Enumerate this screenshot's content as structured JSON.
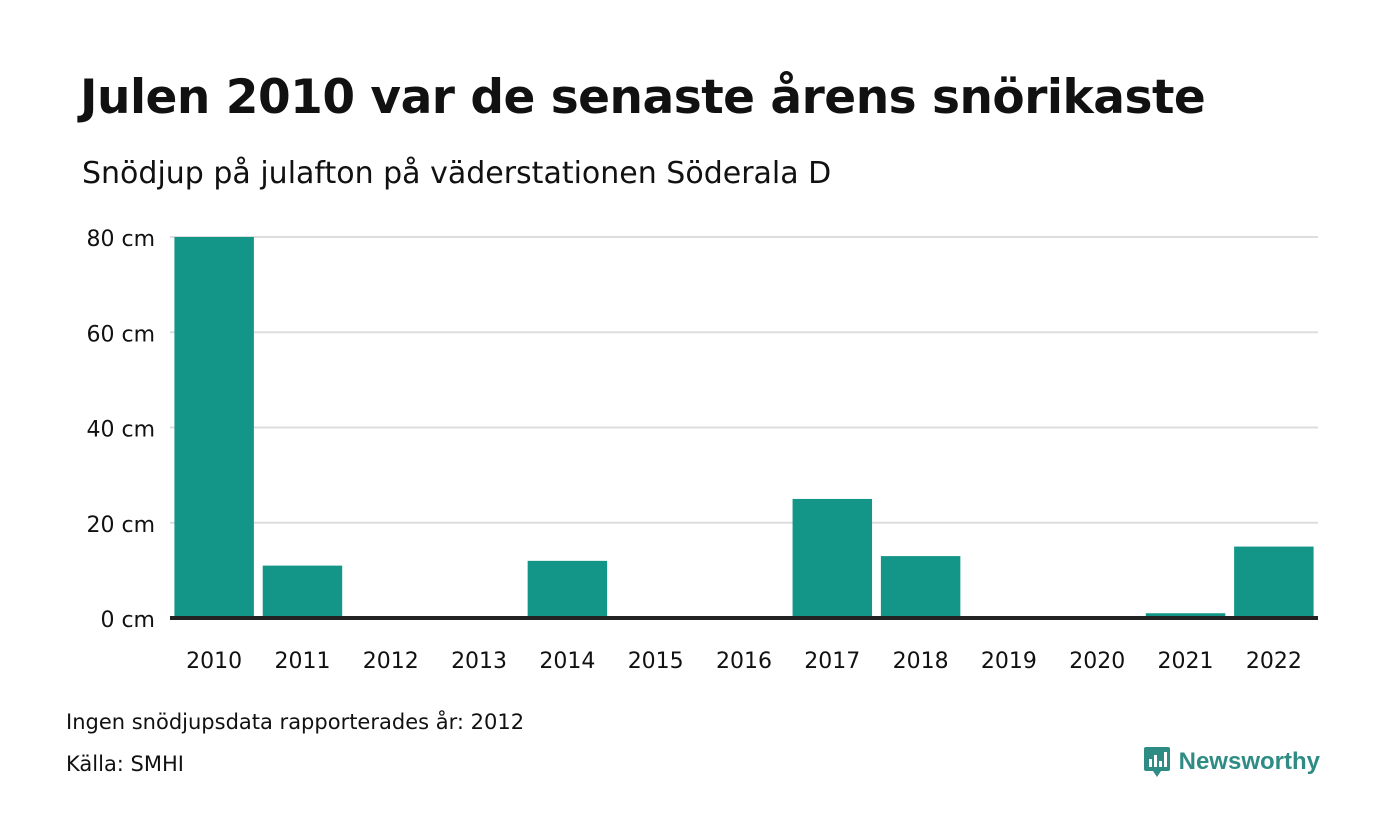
{
  "title": "Julen 2010 var de senaste årens snörikaste",
  "subtitle": "Snödjup på julafton på väderstationen Söderala D",
  "footnote": "Ingen snödjupsdata rapporterades år: 2012",
  "source": "Källa: SMHI",
  "brand": {
    "name": "Newsworthy",
    "icon": "newsworthy-logo-icon",
    "color": "#2f8c84"
  },
  "colors": {
    "bar": "#139688",
    "grid": "#dddddd",
    "axis": "#222222"
  },
  "chart_data": {
    "type": "bar",
    "categories": [
      "2010",
      "2011",
      "2012",
      "2013",
      "2014",
      "2015",
      "2016",
      "2017",
      "2018",
      "2019",
      "2020",
      "2021",
      "2022"
    ],
    "values": [
      80,
      11,
      0,
      0,
      12,
      0,
      0,
      25,
      13,
      0,
      0,
      1,
      15
    ],
    "ylim": [
      0,
      80
    ],
    "yticks": [
      0,
      20,
      40,
      60,
      80
    ],
    "ytick_labels": [
      "0 cm",
      "20 cm",
      "40 cm",
      "60 cm",
      "80 cm"
    ],
    "grid": true
  }
}
